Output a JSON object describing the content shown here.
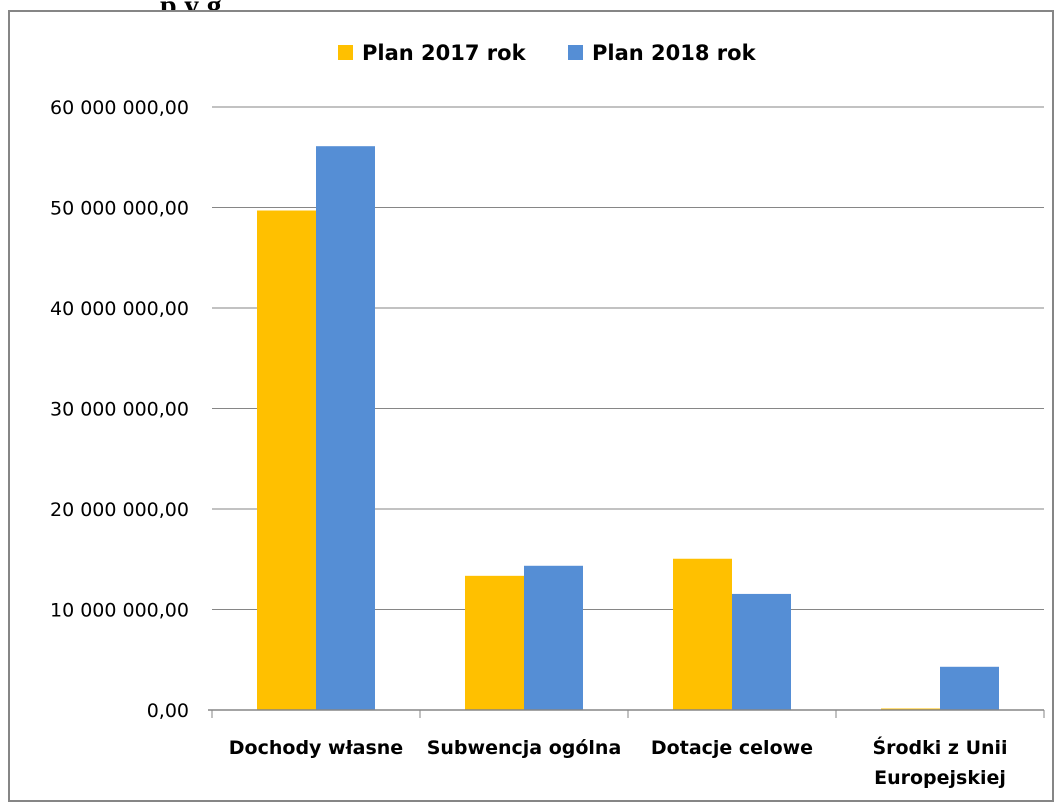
{
  "heading_fragment": "p            y                   g",
  "chart_data": {
    "type": "bar",
    "categories": [
      [
        "Dochody własne"
      ],
      [
        "Subwencja ogólna"
      ],
      [
        "Dotacje celowe"
      ],
      [
        "Środki z Unii",
        "Europejskiej"
      ]
    ],
    "series": [
      {
        "name": "Plan 2017 rok",
        "color": "#FFC000",
        "values": [
          49700000,
          13350000,
          15050000,
          150000
        ]
      },
      {
        "name": "Plan 2018 rok",
        "color": "#558ED5",
        "values": [
          56100000,
          14350000,
          11550000,
          4300000
        ]
      }
    ],
    "ylim": [
      0,
      60000000
    ],
    "y_ticks": [
      0,
      10000000,
      20000000,
      30000000,
      40000000,
      50000000,
      60000000
    ],
    "y_tick_labels": [
      "0,00",
      "10 000 000,00",
      "20 000 000,00",
      "30 000 000,00",
      "40 000 000,00",
      "50 000 000,00",
      "60 000 000,00"
    ],
    "grid": true,
    "legend_position": "top",
    "title": "",
    "xlabel": "",
    "ylabel": ""
  }
}
